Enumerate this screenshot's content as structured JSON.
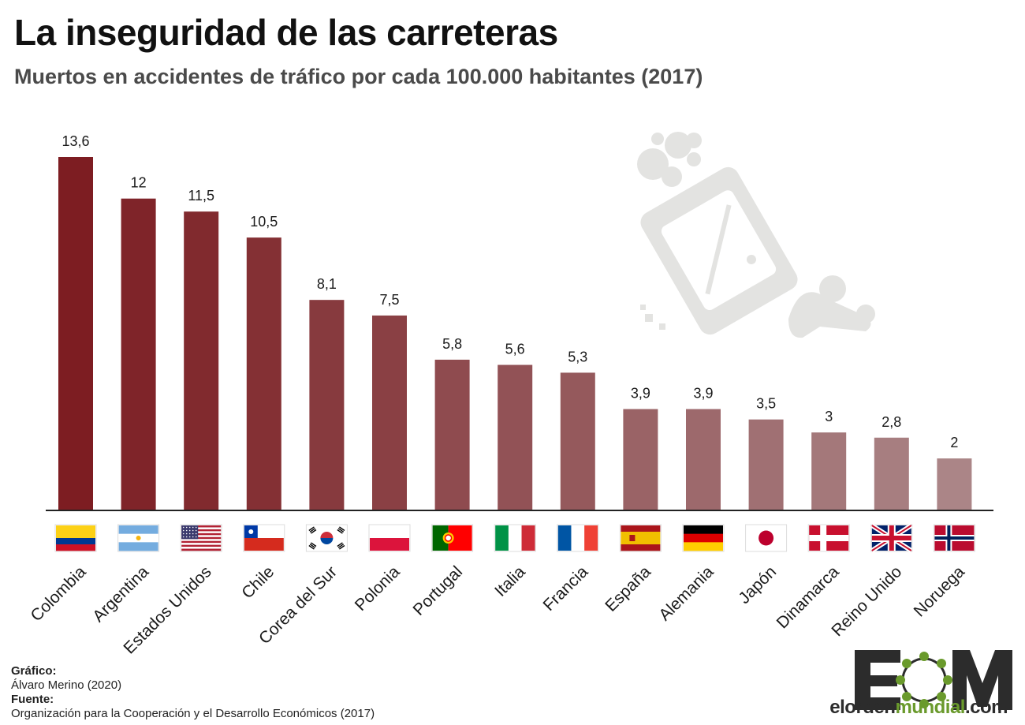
{
  "header": {
    "title": "La inseguridad de las carreteras",
    "subtitle": "Muertos en accidentes de tráfico por cada 100.000 habitantes (2017)"
  },
  "chart_data": {
    "type": "bar",
    "title": "La inseguridad de las carreteras",
    "subtitle": "Muertos en accidentes de tráfico por cada 100.000 habitantes (2017)",
    "xlabel": "",
    "ylabel": "",
    "ylim": [
      0,
      13.6
    ],
    "grid": false,
    "categories": [
      "Colombia",
      "Argentina",
      "Estados Unidos",
      "Chile",
      "Corea del Sur",
      "Polonia",
      "Portugal",
      "Italia",
      "Francia",
      "España",
      "Alemania",
      "Japón",
      "Dinamarca",
      "Reino Unido",
      "Noruega"
    ],
    "values": [
      13.6,
      12,
      11.5,
      10.5,
      8.1,
      7.5,
      5.8,
      5.6,
      5.3,
      3.9,
      3.9,
      3.5,
      3,
      2.8,
      2
    ],
    "value_labels": [
      "13,6",
      "12",
      "11,5",
      "10,5",
      "8,1",
      "7,5",
      "5,8",
      "5,6",
      "5,3",
      "3,9",
      "3,9",
      "3,5",
      "3",
      "2,8",
      "2"
    ],
    "flags": [
      "flag-colombia",
      "flag-argentina",
      "flag-usa",
      "flag-chile",
      "flag-south-korea",
      "flag-poland",
      "flag-portugal",
      "flag-italy",
      "flag-france",
      "flag-spain",
      "flag-germany",
      "flag-japan",
      "flag-denmark",
      "flag-uk",
      "flag-norway"
    ],
    "bar_colors": [
      "#7d1d22",
      "#7f2429",
      "#812a2e",
      "#843034",
      "#873a3e",
      "#8a4044",
      "#8f4b4f",
      "#925256",
      "#95595c",
      "#9a6366",
      "#9d696c",
      "#a07073",
      "#a4787a",
      "#a77e80",
      "#ab8587"
    ]
  },
  "credits": {
    "graphic_label": "Gráfico:",
    "graphic_author": "Álvaro Merino (2020)",
    "source_label": "Fuente:",
    "source_text": "Organización para la Cooperación y el Desarrollo Económicos (2017)"
  },
  "logo": {
    "letters": "EOM",
    "url_prefix": "elorden",
    "url_accent": "mundial",
    "url_suffix": ".com"
  },
  "colors": {
    "axis": "#222222",
    "illustration": "#e3e3e1",
    "logo_dark": "#2c2c2c",
    "logo_green": "#6a9a2c"
  }
}
